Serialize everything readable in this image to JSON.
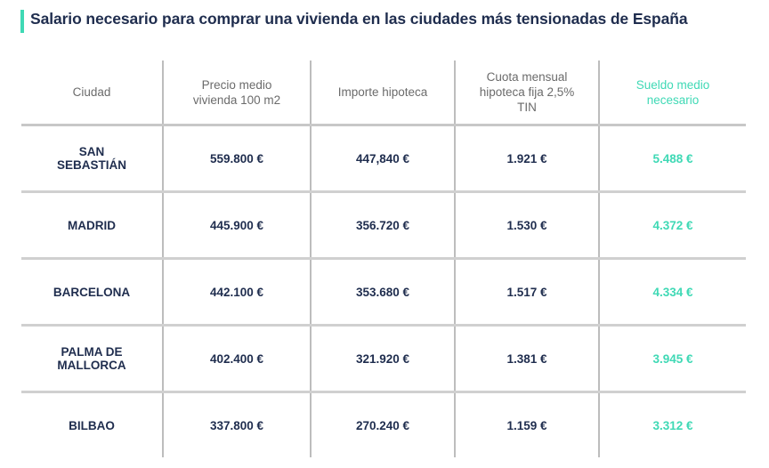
{
  "title": "Salario necesario para comprar una vivienda en las ciudades más tensionadas de España",
  "colors": {
    "accent": "#3fd9b5",
    "text": "#1f2d4e",
    "header": "#6b6b6b"
  },
  "chart_data": {
    "type": "table",
    "title": "Salario necesario para comprar una vivienda en las ciudades más tensionadas de España",
    "columns": [
      "Ciudad",
      "Precio medio vivienda 100 m2",
      "Importe hipoteca",
      "Cuota mensual hipoteca fija 2,5% TIN",
      "Sueldo medio necesario"
    ],
    "rows": [
      [
        "SAN SEBASTIÁN",
        "559.800 €",
        "447,840 €",
        "1.921 €",
        "5.488 €"
      ],
      [
        "MADRID",
        "445.900 €",
        "356.720 €",
        "1.530 €",
        "4.372 €"
      ],
      [
        "BARCELONA",
        "442.100 €",
        "353.680 €",
        "1.517 €",
        "4.334 €"
      ],
      [
        "PALMA DE MALLORCA",
        "402.400 €",
        "321.920 €",
        "1.381 €",
        "3.945 €"
      ],
      [
        "BILBAO",
        "337.800 €",
        "270.240 €",
        "1.159 €",
        "3.312 €"
      ]
    ],
    "highlight_column": 4
  }
}
